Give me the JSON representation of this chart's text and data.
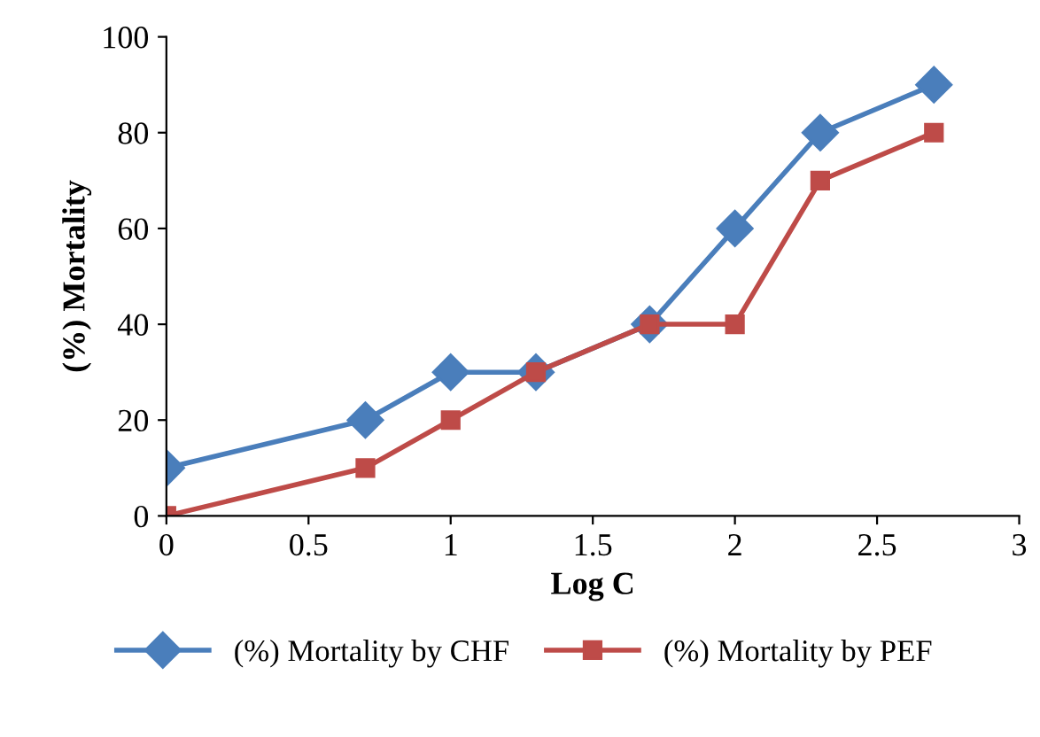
{
  "chart_data": {
    "type": "line",
    "xlabel": "Log C",
    "ylabel": "(%) Mortality",
    "series": [
      {
        "name": "(%) Mortality by CHF",
        "color": "#4a7ebb",
        "marker": "diamond",
        "x": [
          0,
          0.7,
          1,
          1.3,
          1.7,
          2,
          2.3,
          2.7
        ],
        "values": [
          10,
          20,
          30,
          30,
          40,
          60,
          80,
          90
        ]
      },
      {
        "name": "(%) Mortality by PEF",
        "color": "#be4b48",
        "marker": "square",
        "x": [
          0,
          0.7,
          1,
          1.3,
          1.7,
          2,
          2.3,
          2.7
        ],
        "values": [
          0,
          10,
          20,
          30,
          40,
          40,
          70,
          80
        ]
      }
    ],
    "xlim": [
      0,
      3
    ],
    "xticks": [
      0,
      0.5,
      1,
      1.5,
      2,
      2.5,
      3
    ],
    "ylim": [
      0,
      100
    ],
    "yticks": [
      0,
      20,
      40,
      60,
      80,
      100
    ],
    "grid": false,
    "legend": "bottom",
    "line_style": "solid"
  }
}
